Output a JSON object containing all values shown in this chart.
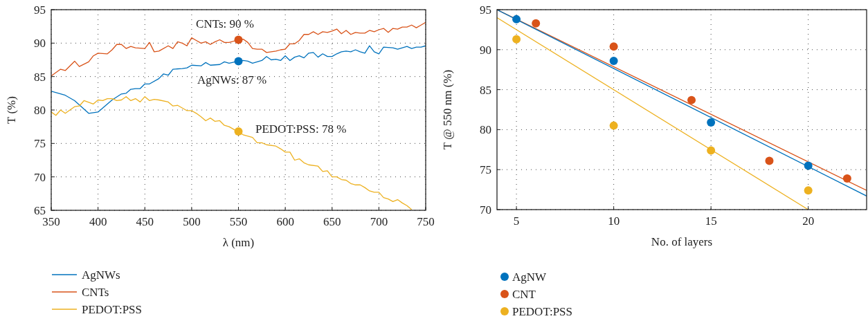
{
  "chart_data": [
    {
      "type": "line",
      "xlabel": "λ (nm)",
      "ylabel": "T (%)",
      "xlim": [
        350,
        750
      ],
      "ylim": [
        65,
        95
      ],
      "xticks": [
        350,
        400,
        450,
        500,
        550,
        600,
        650,
        700,
        750
      ],
      "yticks": [
        65,
        70,
        75,
        80,
        85,
        90,
        95
      ],
      "grid": true,
      "legend": "bottom",
      "annotations": [
        "CNTs: 90 %",
        "AgNWs: 87 %",
        "PEDOT:PSS: 78 %"
      ],
      "series": [
        {
          "name": "AgNWs",
          "color": "#0072bd",
          "marker": "none",
          "x": [
            350,
            365,
            375,
            390,
            400,
            407.5,
            415,
            425,
            430,
            435,
            440,
            445,
            450,
            455,
            465,
            470,
            475,
            480,
            490,
            495,
            500,
            510,
            515,
            520,
            530,
            535,
            540,
            550,
            555,
            560,
            565,
            570,
            575,
            580,
            585,
            590,
            595,
            600,
            605,
            610,
            615,
            620,
            625,
            630,
            635,
            640,
            645,
            650,
            655,
            660,
            665,
            670,
            675,
            680,
            685,
            690,
            695,
            700,
            705,
            715,
            720,
            725,
            730,
            735,
            740,
            745,
            750
          ],
          "values": [
            82.8,
            82.2,
            81.4,
            79.5,
            79.7,
            80.6,
            81.5,
            82.4,
            82.5,
            83.1,
            83.2,
            83.2,
            83.9,
            83.9,
            84.7,
            85.4,
            85.2,
            86.1,
            86.2,
            86.3,
            86.7,
            86.6,
            87.1,
            86.7,
            86.8,
            87.2,
            87.0,
            87.3,
            87.4,
            87.3,
            87.0,
            87.2,
            87.4,
            88.0,
            87.5,
            87.6,
            87.4,
            88.1,
            87.4,
            87.9,
            88.1,
            87.8,
            88.5,
            88.6,
            87.9,
            88.4,
            88.0,
            88.0,
            88.4,
            88.7,
            88.8,
            88.7,
            89.0,
            88.7,
            88.5,
            89.6,
            88.7,
            88.4,
            89.4,
            89.3,
            89.1,
            89.3,
            89.5,
            89.2,
            89.4,
            89.4,
            89.6
          ]
        },
        {
          "name": "CNTs",
          "color": "#d95319",
          "marker": "none",
          "x": [
            350,
            360,
            365,
            375,
            380,
            390,
            395,
            400,
            410,
            415,
            420,
            425,
            430,
            435,
            440,
            450,
            455,
            460,
            465,
            475,
            480,
            485,
            490,
            495,
            500,
            505,
            510,
            515,
            520,
            525,
            530,
            535,
            540,
            550,
            555,
            560,
            565,
            570,
            575,
            580,
            585,
            590,
            595,
            600,
            605,
            610,
            615,
            620,
            625,
            630,
            635,
            640,
            645,
            650,
            655,
            660,
            665,
            670,
            675,
            680,
            685,
            690,
            695,
            700,
            705,
            710,
            715,
            720,
            725,
            730,
            735,
            740,
            745,
            750
          ],
          "values": [
            85.1,
            86.1,
            85.9,
            87.3,
            86.5,
            87.2,
            88.1,
            88.5,
            88.4,
            89.0,
            89.8,
            89.8,
            89.2,
            89.5,
            89.3,
            89.2,
            90.1,
            88.7,
            88.8,
            89.6,
            89.2,
            90.2,
            90.0,
            89.6,
            90.8,
            90.4,
            90.0,
            90.2,
            89.8,
            90.2,
            90.5,
            90.1,
            90.1,
            90.5,
            90.6,
            90.1,
            89.2,
            89.1,
            89.1,
            88.6,
            88.7,
            88.8,
            89.0,
            89.1,
            89.9,
            89.9,
            90.4,
            91.3,
            91.3,
            91.7,
            91.3,
            91.7,
            91.6,
            91.8,
            92.1,
            91.4,
            91.9,
            91.3,
            91.6,
            91.5,
            91.5,
            91.9,
            91.7,
            92.0,
            92.2,
            91.6,
            92.2,
            92.1,
            92.4,
            92.4,
            92.7,
            92.3,
            92.7,
            93.1
          ]
        },
        {
          "name": "PEDOT:PSS",
          "color": "#edb120",
          "marker": "none",
          "x": [
            350,
            355,
            360,
            365,
            375,
            380,
            385,
            395,
            400,
            405,
            410,
            415,
            420,
            425,
            430,
            435,
            440,
            445,
            450,
            455,
            460,
            465,
            475,
            480,
            485,
            495,
            500,
            505,
            510,
            515,
            520,
            525,
            530,
            535,
            540,
            550,
            555,
            565,
            570,
            575,
            580,
            590,
            595,
            600,
            605,
            610,
            615,
            620,
            625,
            635,
            640,
            645,
            650,
            655,
            660,
            665,
            670,
            675,
            680,
            685,
            690,
            695,
            700,
            705,
            710,
            715,
            720,
            725,
            730,
            735
          ],
          "values": [
            79.7,
            79.2,
            80.0,
            79.5,
            80.5,
            80.6,
            81.4,
            80.9,
            81.5,
            81.4,
            81.7,
            81.7,
            81.4,
            81.5,
            82.0,
            81.4,
            81.7,
            81.2,
            82.0,
            81.4,
            81.6,
            81.5,
            81.2,
            80.6,
            80.7,
            79.9,
            79.9,
            79.5,
            79.0,
            78.4,
            78.8,
            78.3,
            78.4,
            77.7,
            77.5,
            76.7,
            76.3,
            75.9,
            75.1,
            75.1,
            74.8,
            74.6,
            74.2,
            73.7,
            73.7,
            72.5,
            72.7,
            72.1,
            71.8,
            71.6,
            70.8,
            70.9,
            70.0,
            70.0,
            69.6,
            69.5,
            69.0,
            68.8,
            68.8,
            68.4,
            67.9,
            67.7,
            67.7,
            66.9,
            66.7,
            66.3,
            66.6,
            66.1,
            65.7,
            65.1
          ]
        },
        {
          "type": "scatter",
          "color": "#d95319",
          "marker": "circle",
          "x": [
            550
          ],
          "values": [
            90.5
          ]
        },
        {
          "type": "scatter",
          "color": "#0072bd",
          "marker": "circle",
          "x": [
            550
          ],
          "values": [
            87.3
          ]
        },
        {
          "type": "scatter",
          "color": "#edb120",
          "marker": "circle",
          "x": [
            550
          ],
          "values": [
            76.8
          ]
        }
      ]
    },
    {
      "type": "scatter",
      "xlabel": "No. of layers",
      "ylabel": "T @ 550 nm (%)",
      "xlim": [
        4,
        23
      ],
      "ylim": [
        70,
        95
      ],
      "xticks": [
        5,
        10,
        15,
        20
      ],
      "yticks": [
        70,
        75,
        80,
        85,
        90,
        95
      ],
      "grid": true,
      "legend": "bottom",
      "series": [
        {
          "type": "line",
          "color": "#d95319",
          "marker": "none",
          "x": [
            4,
            23
          ],
          "values": [
            95.0,
            72.4
          ]
        },
        {
          "type": "line",
          "color": "#0072bd",
          "marker": "none",
          "x": [
            4,
            23
          ],
          "values": [
            95.0,
            71.7
          ]
        },
        {
          "type": "line",
          "color": "#edb120",
          "marker": "none",
          "x": [
            4,
            20
          ],
          "values": [
            94.0,
            70.0
          ]
        },
        {
          "name": "AgNW",
          "color": "#0072bd",
          "marker": "circle",
          "x": [
            5,
            10,
            15,
            20
          ],
          "values": [
            93.8,
            88.6,
            80.9,
            75.5
          ]
        },
        {
          "name": "CNT",
          "color": "#d95319",
          "marker": "circle",
          "x": [
            6,
            10,
            14,
            18,
            22
          ],
          "values": [
            93.3,
            90.4,
            83.7,
            76.1,
            73.9
          ]
        },
        {
          "name": "PEDOT:PSS",
          "color": "#edb120",
          "marker": "circle",
          "x": [
            5,
            10,
            15,
            20
          ],
          "values": [
            91.3,
            80.5,
            77.4,
            72.4
          ]
        }
      ]
    }
  ]
}
